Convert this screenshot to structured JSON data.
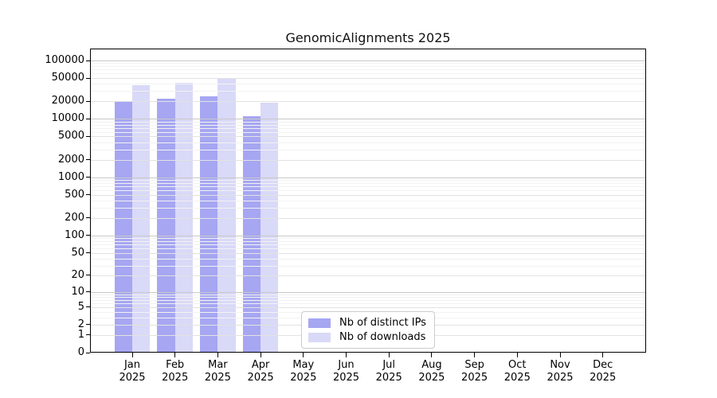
{
  "title": "GenomicAlignments 2025",
  "chart_data": {
    "type": "bar",
    "title": "GenomicAlignments 2025",
    "categories": [
      "Jan",
      "Feb",
      "Mar",
      "Apr",
      "May",
      "Jun",
      "Jul",
      "Aug",
      "Sep",
      "Oct",
      "Nov",
      "Dec"
    ],
    "year_label": "2025",
    "series": [
      {
        "name": "Nb of distinct IPs",
        "color": "#a6a6f2",
        "values": [
          20000,
          22000,
          24500,
          11000,
          null,
          null,
          null,
          null,
          null,
          null,
          null,
          null
        ]
      },
      {
        "name": "Nb of downloads",
        "color": "#d9d9f8",
        "values": [
          38000,
          41000,
          50000,
          19000,
          null,
          null,
          null,
          null,
          null,
          null,
          null,
          null
        ]
      }
    ],
    "yticks": [
      0,
      1,
      2,
      5,
      10,
      20,
      50,
      100,
      200,
      500,
      1000,
      2000,
      5000,
      10000,
      20000,
      50000,
      100000
    ],
    "ylim": [
      0,
      100000
    ],
    "scale": "log1p",
    "xlabel": "",
    "ylabel": "",
    "grid": "horizontal",
    "legend_position": "inside-bottom-center",
    "colors": {
      "grid_major": "#c8c8c8",
      "grid_labeled": "#e2e2e2",
      "grid_minor": "#f2f2f2",
      "spine": "#000000",
      "background": "#ffffff"
    }
  }
}
